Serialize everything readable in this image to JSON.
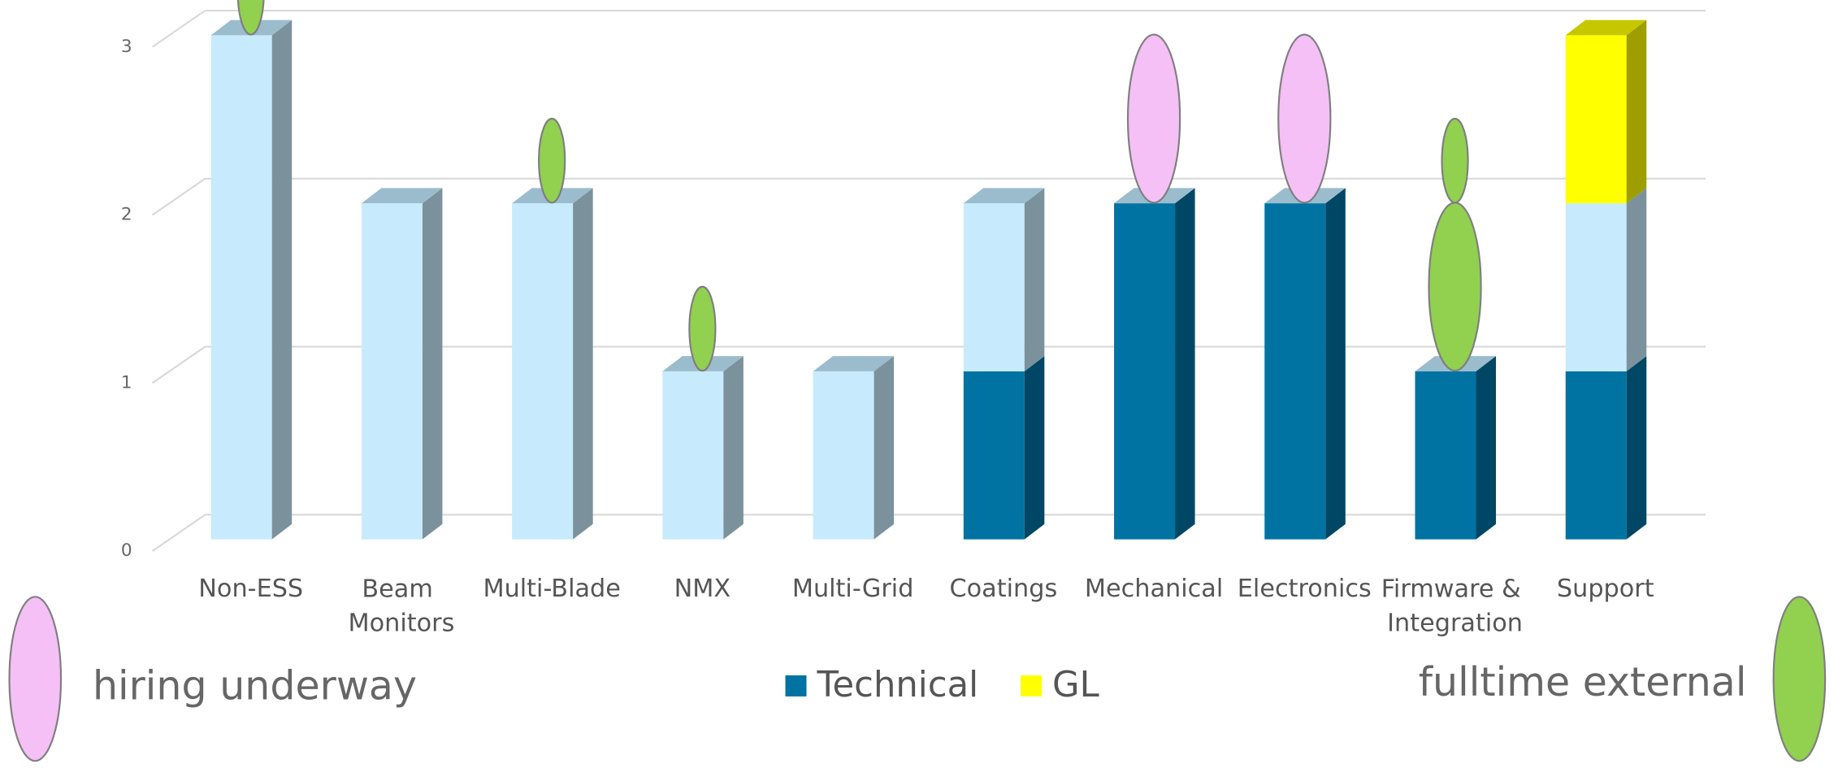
{
  "chart_data": {
    "type": "bar3d_stacked",
    "categories": [
      "Non-ESS",
      "Beam Monitors",
      "Multi-Blade",
      "NMX",
      "Multi-Grid",
      "Coatings",
      "Mechanical",
      "Electronics",
      "Firmware & Integration",
      "Support"
    ],
    "series": [
      {
        "name": "Technical",
        "color": "#0073a3",
        "values": [
          0,
          0,
          0,
          0,
          0,
          1,
          2,
          2,
          1,
          1
        ]
      },
      {
        "color": "#c7ebfc",
        "values": [
          3,
          2,
          2,
          1,
          1,
          1,
          0,
          0,
          0,
          1
        ]
      },
      {
        "name": "GL",
        "color": "#ffff00",
        "values": [
          0,
          0,
          0,
          0,
          0,
          0,
          0,
          0,
          0,
          1
        ]
      }
    ],
    "ylim": [
      0,
      3
    ],
    "yticks": [
      0,
      1,
      2,
      3
    ],
    "grid": true,
    "annotations": [
      {
        "text": "hiring underway",
        "color": "#f5c0f5",
        "corner": "left",
        "markers": [
          {
            "category": "Mechanical",
            "size": 1
          },
          {
            "category": "Electronics",
            "size": 1
          }
        ]
      },
      {
        "text": "fulltime external",
        "color": "#92d050",
        "corner": "right",
        "markers": [
          {
            "category": "Non-ESS",
            "size": 0.5
          },
          {
            "category": "Multi-Blade",
            "size": 0.5
          },
          {
            "category": "NMX",
            "size": 0.5
          },
          {
            "category": "Firmware & Integration",
            "size": 1
          },
          {
            "category": "Firmware & Integration",
            "size": 0.5
          }
        ]
      }
    ]
  }
}
